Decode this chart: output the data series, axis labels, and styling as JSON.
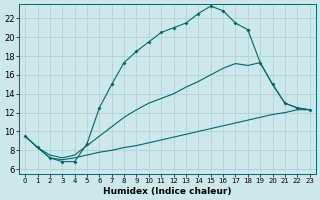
{
  "xlabel": "Humidex (Indice chaleur)",
  "background_color": "#cce8ea",
  "grid_color": "#aacfd4",
  "line_color": "#006868",
  "xlim": [
    -0.5,
    23.5
  ],
  "ylim": [
    5.5,
    23.5
  ],
  "xticks": [
    0,
    1,
    2,
    3,
    4,
    5,
    6,
    7,
    8,
    9,
    10,
    11,
    12,
    13,
    14,
    15,
    16,
    17,
    18,
    19,
    20,
    21,
    22,
    23
  ],
  "yticks": [
    6,
    8,
    10,
    12,
    14,
    16,
    18,
    20,
    22
  ],
  "curve_upper_x": [
    0,
    1,
    2,
    3,
    4,
    5,
    6,
    7,
    8,
    9,
    10,
    11,
    12,
    13,
    14,
    15,
    16,
    17,
    18
  ],
  "curve_upper_y": [
    9.5,
    8.3,
    7.2,
    6.8,
    6.8,
    8.7,
    12.5,
    15.0,
    17.3,
    18.5,
    19.5,
    20.5,
    21.0,
    21.5,
    22.5,
    23.3,
    22.8,
    21.5,
    20.8
  ],
  "curve_right_x": [
    18,
    19,
    20,
    21,
    22,
    23
  ],
  "curve_right_y": [
    20.8,
    17.3,
    15.0,
    13.0,
    12.5,
    12.3
  ],
  "curve_mid_x": [
    0,
    1,
    2,
    3,
    4,
    5,
    6,
    7,
    8,
    9,
    10,
    11,
    12,
    13,
    14,
    15,
    16,
    17,
    18,
    19,
    20,
    21,
    22,
    23
  ],
  "curve_mid_y": [
    9.5,
    8.3,
    7.5,
    7.2,
    7.5,
    8.5,
    9.5,
    10.5,
    11.5,
    12.3,
    13.0,
    13.5,
    14.0,
    14.7,
    15.3,
    16.0,
    16.7,
    17.2,
    17.0,
    17.3,
    15.0,
    13.0,
    12.5,
    12.3
  ],
  "curve_low_x": [
    0,
    1,
    2,
    3,
    4,
    5,
    6,
    7,
    8,
    9,
    10,
    11,
    12,
    13,
    14,
    15,
    16,
    17,
    18,
    19,
    20,
    21,
    22,
    23
  ],
  "curve_low_y": [
    9.5,
    8.3,
    7.2,
    7.0,
    7.2,
    7.5,
    7.8,
    8.0,
    8.3,
    8.5,
    8.8,
    9.1,
    9.4,
    9.7,
    10.0,
    10.3,
    10.6,
    10.9,
    11.2,
    11.5,
    11.8,
    12.0,
    12.3,
    12.3
  ]
}
